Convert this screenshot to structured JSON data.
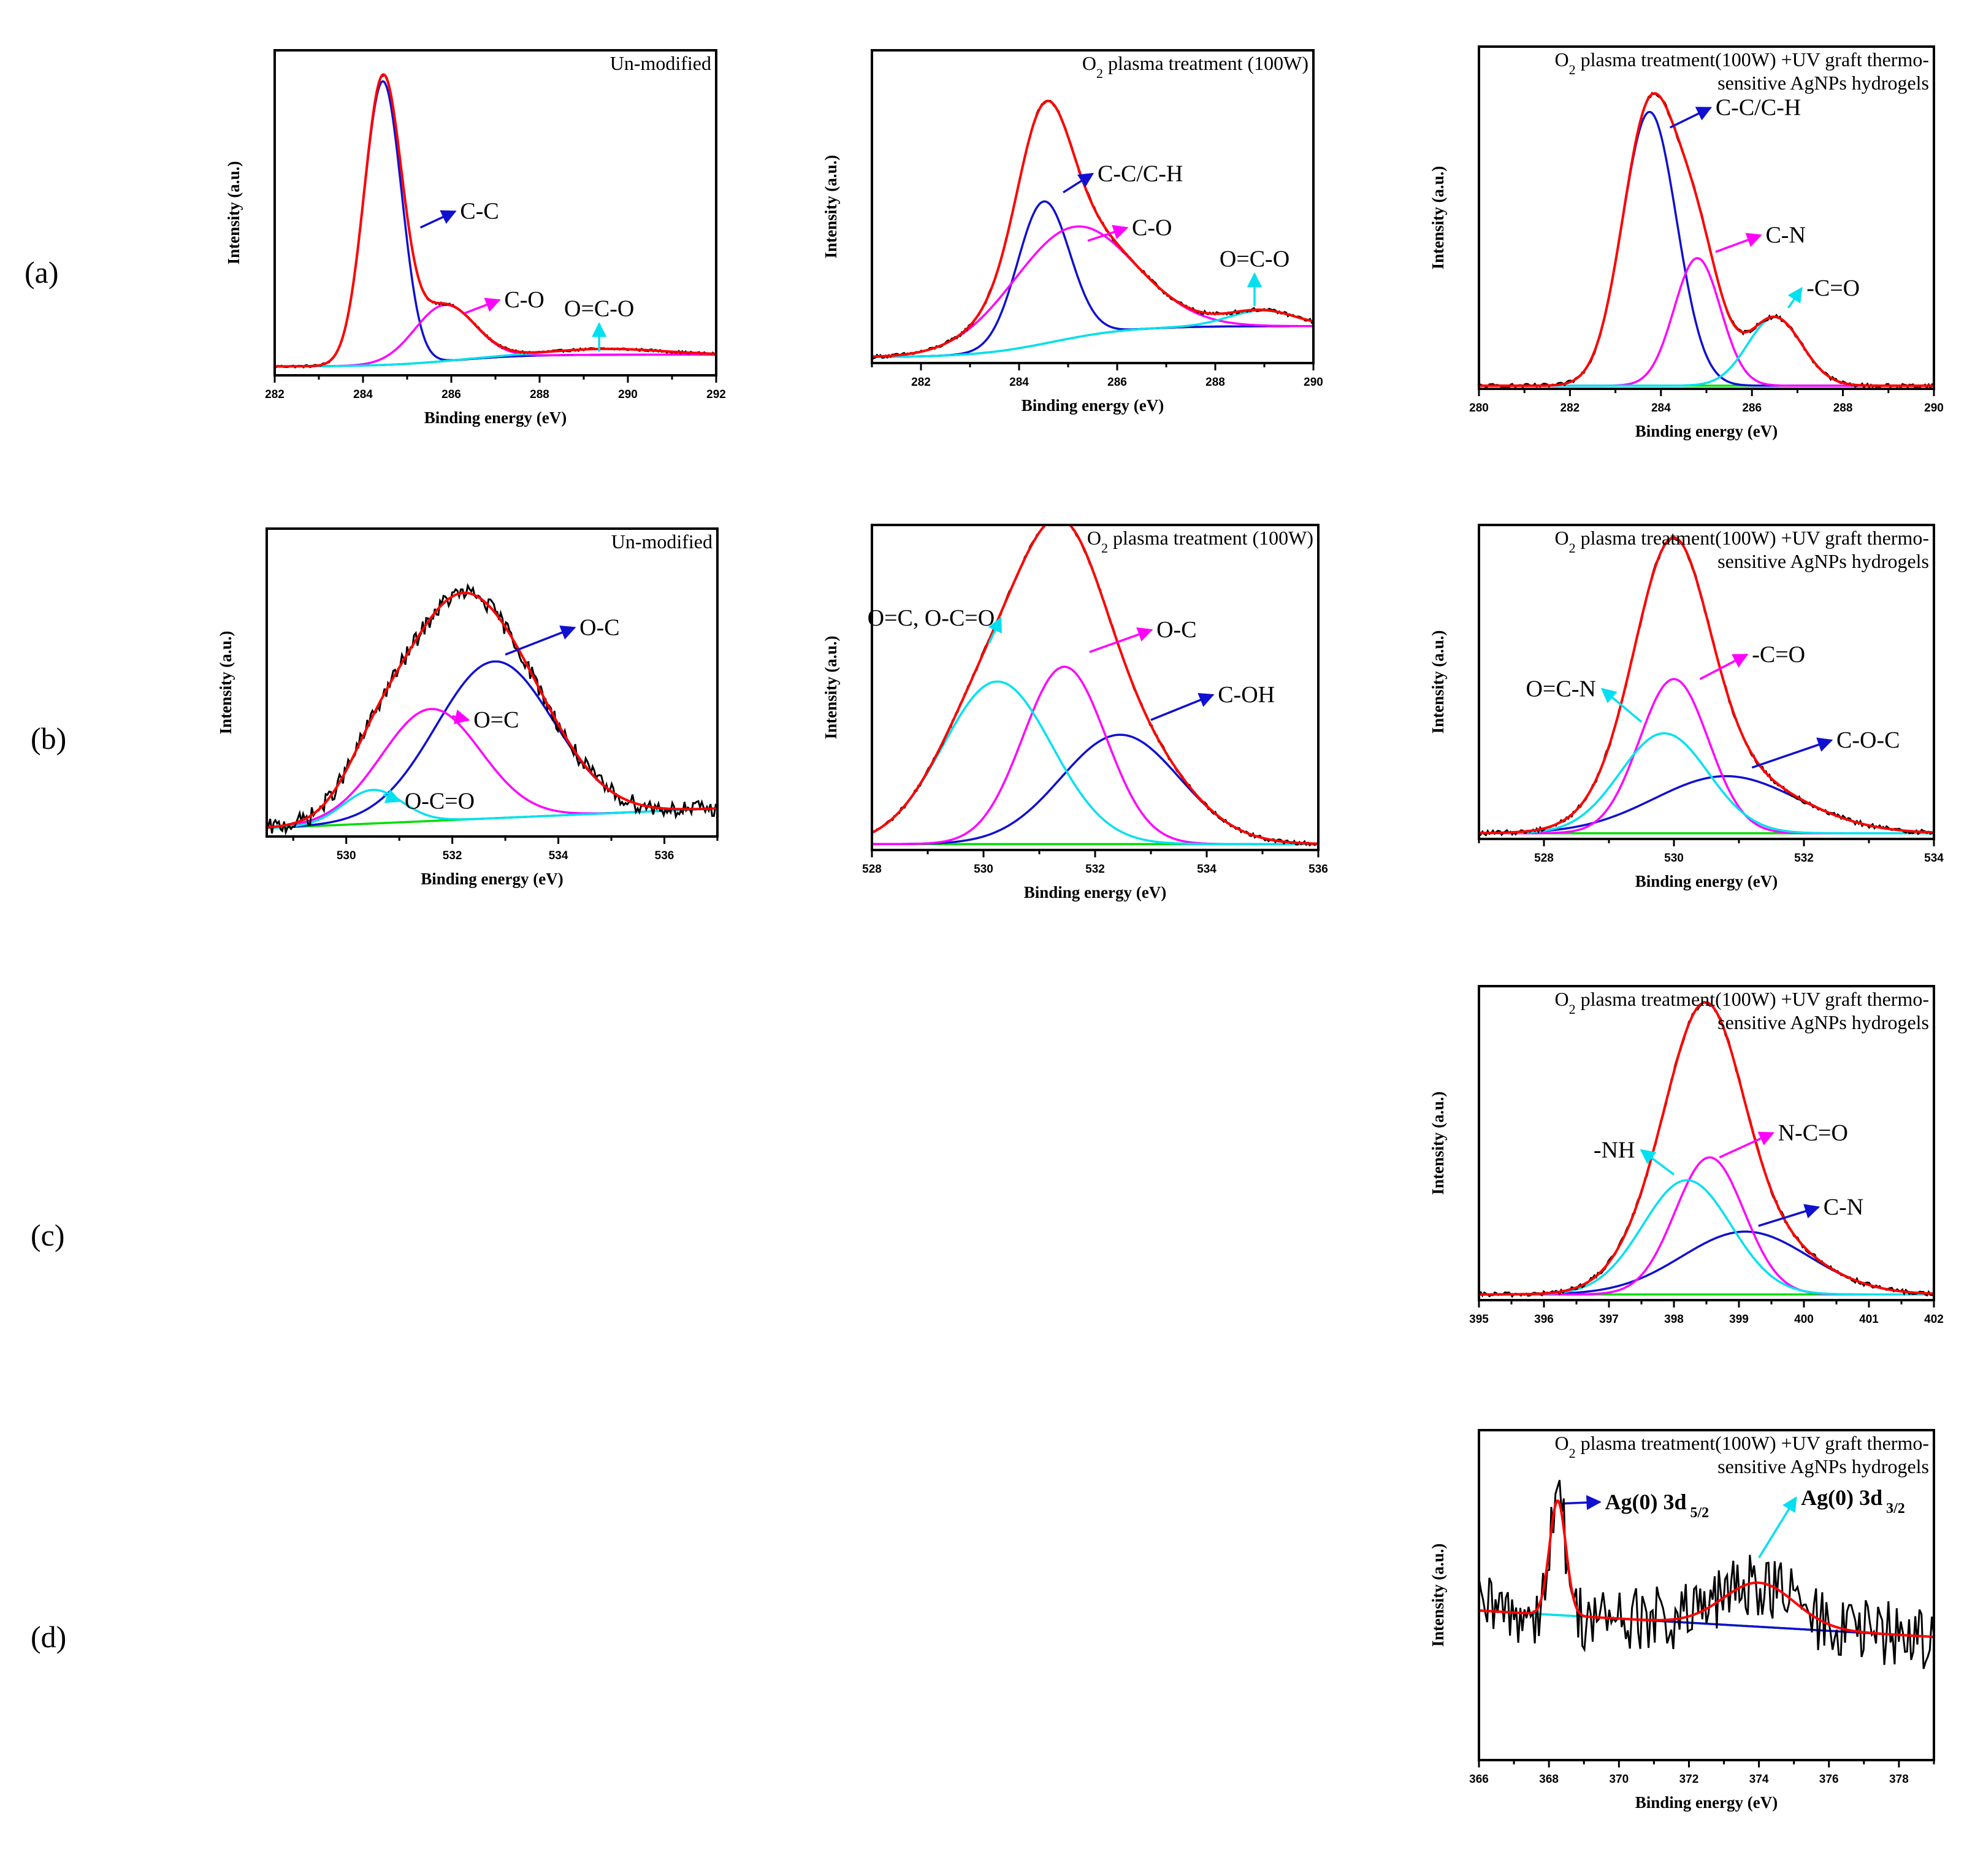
{
  "row_labels": [
    "(a)",
    "(b)",
    "(c)",
    "(d)"
  ],
  "colors": {
    "raw": "#000000",
    "envelope": "#ff0000",
    "blue": "#1010d0",
    "magenta": "#ff00ff",
    "cyan": "#00e0f0",
    "green": "#00dd00"
  },
  "chart_data": [
    {
      "id": "a1",
      "row": "(a)",
      "type": "line",
      "title": "Un-modified",
      "xlabel": "Binding energy (eV)",
      "ylabel": "Intensity (a.u.)",
      "xlim": [
        282,
        292
      ],
      "ylim": [
        0,
        1.1
      ],
      "xticks": [
        282,
        284,
        286,
        288,
        290,
        292
      ],
      "background": {
        "type": "sigmoid",
        "start": 0.03,
        "end": 0.07,
        "center": 286,
        "width": 0.8
      },
      "raw_noise": 0.004,
      "components": [
        {
          "name": "C-C",
          "color": "blue",
          "center": 284.45,
          "height": 0.96,
          "fwhm": 1.0
        },
        {
          "name": "C-O",
          "color": "magenta",
          "center": 285.85,
          "height": 0.19,
          "fwhm": 1.6
        },
        {
          "name": "O=C-O",
          "color": "cyan",
          "center": 289.5,
          "height": 0.02,
          "fwhm": 3.0
        }
      ],
      "labels": [
        {
          "text": "C-C",
          "comp": 0,
          "ax": 285.3,
          "ay": 0.5,
          "tx": 286.2,
          "ty": 0.53
        },
        {
          "text": "C-O",
          "comp": 1,
          "ax": 286.3,
          "ay": 0.21,
          "tx": 287.2,
          "ty": 0.23
        },
        {
          "text": "O=C-O",
          "comp": 2,
          "ax": 289.35,
          "ay": 0.08,
          "tx": 289.4,
          "ty": 0.2,
          "upright": true
        }
      ]
    },
    {
      "id": "a2",
      "row": "(a)",
      "type": "line",
      "title": "O₂ plasma treatment (100W)",
      "xlabel": "Binding energy (eV)",
      "ylabel": "Intensity (a.u.)",
      "xlim": [
        281,
        290
      ],
      "ylim": [
        0,
        1.1
      ],
      "xticks": [
        282,
        284,
        286,
        288,
        290
      ],
      "background": {
        "type": "sigmoid",
        "start": 0.02,
        "end": 0.13,
        "center": 284.7,
        "width": 0.8
      },
      "raw_noise": 0.006,
      "components": [
        {
          "name": "C-C/C-H",
          "color": "blue",
          "center": 284.5,
          "height": 0.5,
          "fwhm": 1.25
        },
        {
          "name": "C-O",
          "color": "magenta",
          "center": 285.1,
          "height": 0.39,
          "fwhm": 2.9
        },
        {
          "name": "O=C-O",
          "color": "cyan",
          "center": 288.95,
          "height": 0.055,
          "fwhm": 1.6
        }
      ],
      "labels": [
        {
          "text": "C-C/C-H",
          "comp": 0,
          "ax": 284.9,
          "ay": 0.6,
          "tx": 285.6,
          "ty": 0.64
        },
        {
          "text": "C-O",
          "comp": 1,
          "ax": 285.4,
          "ay": 0.43,
          "tx": 286.3,
          "ty": 0.45
        },
        {
          "text": "O=C-O",
          "comp": 2,
          "ax": 288.8,
          "ay": 0.2,
          "tx": 288.2,
          "ty": 0.34,
          "upright": true
        }
      ]
    },
    {
      "id": "a3",
      "row": "(a)",
      "type": "line",
      "title": "O₂ plasma treatment(100W) +UV graft thermo-",
      "title_line2": "sensitive AgNPs hydrogels",
      "xlabel": "Binding energy (eV)",
      "ylabel": "Intensity (a.u.)",
      "xlim": [
        280,
        290
      ],
      "ylim": [
        0,
        1.1
      ],
      "xticks": [
        280,
        282,
        284,
        286,
        288,
        290
      ],
      "background": {
        "type": "flat",
        "start": 0.01,
        "end": 0.01
      },
      "raw_noise": 0.006,
      "components": [
        {
          "name": "C-C/C-H",
          "color": "blue",
          "center": 283.75,
          "height": 0.88,
          "fwhm": 1.4
        },
        {
          "name": "C-N",
          "color": "magenta",
          "center": 284.8,
          "height": 0.41,
          "fwhm": 1.2
        },
        {
          "name": "-C=O",
          "color": "cyan",
          "center": 286.5,
          "height": 0.22,
          "fwhm": 1.4
        }
      ],
      "labels": [
        {
          "text": "C-C/C-H",
          "comp": 0,
          "ax": 284.2,
          "ay": 0.84,
          "tx": 285.2,
          "ty": 0.88
        },
        {
          "text": "C-N",
          "comp": 1,
          "ax": 285.2,
          "ay": 0.44,
          "tx": 286.3,
          "ty": 0.47
        },
        {
          "text": "-C=O",
          "comp": 2,
          "ax": 286.8,
          "ay": 0.26,
          "tx": 287.2,
          "ty": 0.3
        }
      ]
    },
    {
      "id": "b1",
      "row": "(b)",
      "type": "line",
      "title": "Un-modified",
      "xlabel": "Binding energy (eV)",
      "ylabel": "Intensity (a.u.)",
      "xlim": [
        528.5,
        537
      ],
      "ylim": [
        0,
        1.1
      ],
      "xticks": [
        530,
        532,
        534,
        536
      ],
      "background": {
        "type": "linear",
        "start": 0.03,
        "end": 0.1
      },
      "raw_noise": 0.03,
      "components": [
        {
          "name": "O-C",
          "color": "blue",
          "center": 532.8,
          "height": 0.56,
          "fwhm": 2.6
        },
        {
          "name": "O=C",
          "color": "magenta",
          "center": 531.6,
          "height": 0.4,
          "fwhm": 2.2
        },
        {
          "name": "O-C=O",
          "color": "cyan",
          "center": 530.5,
          "height": 0.12,
          "fwhm": 1.3
        }
      ],
      "labels": [
        {
          "text": "O-C",
          "comp": 0,
          "ax": 533.0,
          "ay": 0.65,
          "tx": 534.4,
          "ty": 0.72
        },
        {
          "text": "O=C",
          "comp": 1,
          "ax": 532.0,
          "ay": 0.43,
          "tx": 532.4,
          "ty": 0.39
        },
        {
          "text": "O-C=O",
          "comp": 2,
          "ax": 530.7,
          "ay": 0.15,
          "tx": 531.1,
          "ty": 0.1
        }
      ]
    },
    {
      "id": "b2",
      "row": "(b)",
      "type": "line",
      "title": "O₂ plasma treatment (100W)",
      "xlabel": "Binding energy (eV)",
      "ylabel": "Intensity (a.u.)",
      "xlim": [
        528,
        536
      ],
      "ylim": [
        0,
        1.1
      ],
      "xticks": [
        528,
        530,
        532,
        534,
        536
      ],
      "background": {
        "type": "flat",
        "start": 0.02,
        "end": 0.02
      },
      "raw_noise": 0.006,
      "components": [
        {
          "name": "C-OH",
          "color": "blue",
          "center": 532.45,
          "height": 0.37,
          "fwhm": 2.5
        },
        {
          "name": "O-C",
          "color": "magenta",
          "center": 531.45,
          "height": 0.6,
          "fwhm": 1.75
        },
        {
          "name": "O=C, O-C=O",
          "color": "cyan",
          "center": 530.25,
          "height": 0.55,
          "fwhm": 2.3
        }
      ],
      "labels": [
        {
          "text": "C-OH",
          "comp": 0,
          "ax": 533.0,
          "ay": 0.44,
          "tx": 534.2,
          "ty": 0.5
        },
        {
          "text": "O-C",
          "comp": 1,
          "ax": 531.9,
          "ay": 0.67,
          "tx": 533.1,
          "ty": 0.72
        },
        {
          "text": "O=C, O-C=O",
          "comp": 2,
          "ax": 530.1,
          "ay": 0.7,
          "tx": 530.2,
          "ty": 0.76,
          "anchor": "end"
        }
      ]
    },
    {
      "id": "b3",
      "row": "(b)",
      "type": "line",
      "title": "O₂ plasma treatment(100W) +UV graft thermo-",
      "title_line2": "sensitive AgNPs hydrogels",
      "xlabel": "Binding energy (eV)",
      "ylabel": "Intensity (a.u.)",
      "xlim": [
        527,
        534
      ],
      "ylim": [
        0,
        1.1
      ],
      "xticks": [
        528,
        530,
        532,
        534
      ],
      "background": {
        "type": "flat",
        "start": 0.02,
        "end": 0.02
      },
      "raw_noise": 0.008,
      "components": [
        {
          "name": "C-O-C",
          "color": "blue",
          "center": 530.8,
          "height": 0.2,
          "fwhm": 2.6
        },
        {
          "name": "-C=O",
          "color": "magenta",
          "center": 530.0,
          "height": 0.54,
          "fwhm": 1.25
        },
        {
          "name": "O=C-N",
          "color": "cyan",
          "center": 529.85,
          "height": 0.35,
          "fwhm": 1.6
        }
      ],
      "labels": [
        {
          "text": "C-O-C",
          "comp": 0,
          "ax": 531.2,
          "ay": 0.25,
          "tx": 532.5,
          "ty": 0.32
        },
        {
          "text": "-C=O",
          "comp": 1,
          "ax": 530.4,
          "ay": 0.56,
          "tx": 531.2,
          "ty": 0.62
        },
        {
          "text": "O=C-N",
          "comp": 2,
          "ax": 529.5,
          "ay": 0.41,
          "tx": 528.8,
          "ty": 0.5,
          "anchor": "end"
        }
      ]
    },
    {
      "id": "c3",
      "row": "(c)",
      "type": "line",
      "title": "O₂ plasma treatment(100W) +UV graft thermo-",
      "title_line2": "sensitive AgNPs hydrogels",
      "xlabel": "",
      "ylabel": "Intensity (a.u.)",
      "xlim": [
        395,
        402
      ],
      "ylim": [
        0,
        1.1
      ],
      "xticks": [
        395,
        396,
        397,
        398,
        399,
        400,
        401,
        402
      ],
      "background": {
        "type": "flat",
        "start": 0.02,
        "end": 0.02
      },
      "raw_noise": 0.008,
      "components": [
        {
          "name": "C-N",
          "color": "blue",
          "center": 399.1,
          "height": 0.22,
          "fwhm": 2.3
        },
        {
          "name": "N-C=O",
          "color": "magenta",
          "center": 398.55,
          "height": 0.48,
          "fwhm": 1.25
        },
        {
          "name": "-NH",
          "color": "cyan",
          "center": 398.2,
          "height": 0.4,
          "fwhm": 1.6
        }
      ],
      "labels": [
        {
          "text": "C-N",
          "comp": 0,
          "ax": 399.3,
          "ay": 0.26,
          "tx": 400.3,
          "ty": 0.3
        },
        {
          "text": "N-C=O",
          "comp": 1,
          "ax": 398.7,
          "ay": 0.5,
          "tx": 399.6,
          "ty": 0.56
        },
        {
          "text": "-NH",
          "comp": 2,
          "ax": 398.0,
          "ay": 0.44,
          "tx": 397.4,
          "ty": 0.5,
          "anchor": "end"
        }
      ]
    },
    {
      "id": "d3",
      "row": "(d)",
      "type": "line",
      "title": "O₂ plasma treatment(100W) +UV graft thermo-",
      "title_line2": "sensitive AgNPs hydrogels",
      "xlabel": "Binding energy (eV)",
      "ylabel": "Intensity (a.u.)",
      "xlim": [
        366,
        379
      ],
      "ylim": [
        -0.9,
        1.35
      ],
      "xticks": [
        366,
        368,
        370,
        372,
        374,
        376,
        378
      ],
      "background": {
        "type": "linear",
        "start": 0.12,
        "end": -0.06
      },
      "raw_noise": 0.23,
      "components": [
        {
          "name": "Ag(0) 3d 5/2",
          "color": "blue",
          "center": 368.25,
          "height": 0.78,
          "fwhm": 0.55
        },
        {
          "name": "Ag(0) 3d 3/2",
          "color": "cyan",
          "center": 374.0,
          "height": 0.3,
          "fwhm": 2.4
        }
      ],
      "labels": [
        {
          "text": "Ag(0) 3d",
          "sub": "5/2",
          "comp": 0,
          "ax": 368.45,
          "ay": 0.85,
          "tx": 369.6,
          "ty": 0.81,
          "bold": true
        },
        {
          "text": "Ag(0) 3d",
          "sub": "3/2",
          "comp": 1,
          "ax": 374.0,
          "ay": 0.48,
          "tx": 375.2,
          "ty": 0.84,
          "bold": true
        }
      ]
    }
  ]
}
